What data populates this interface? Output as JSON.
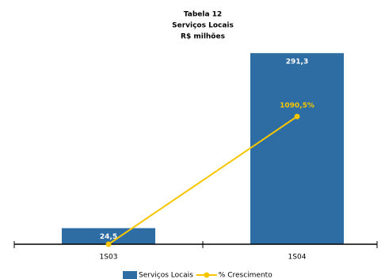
{
  "chart_data": {
    "type": "bar-line",
    "title": [
      "Tabela 12",
      "Serviços Locais",
      "R$ milhões"
    ],
    "categories": [
      "1S03",
      "1S04"
    ],
    "series": [
      {
        "name": "Serviços Locais",
        "type": "bar",
        "color": "#2e6da4",
        "values": [
          24.5,
          291.3
        ],
        "value_labels": [
          "24,5",
          "291,3"
        ]
      },
      {
        "name": "% Crescimento",
        "type": "line",
        "axis": "y2",
        "color": "#f7c600",
        "values": [
          0,
          1090.5
        ],
        "value_labels": [
          null,
          "1090,5%"
        ]
      }
    ],
    "ylim": [
      0,
      300
    ],
    "y2lim": [
      0,
      1680
    ]
  }
}
